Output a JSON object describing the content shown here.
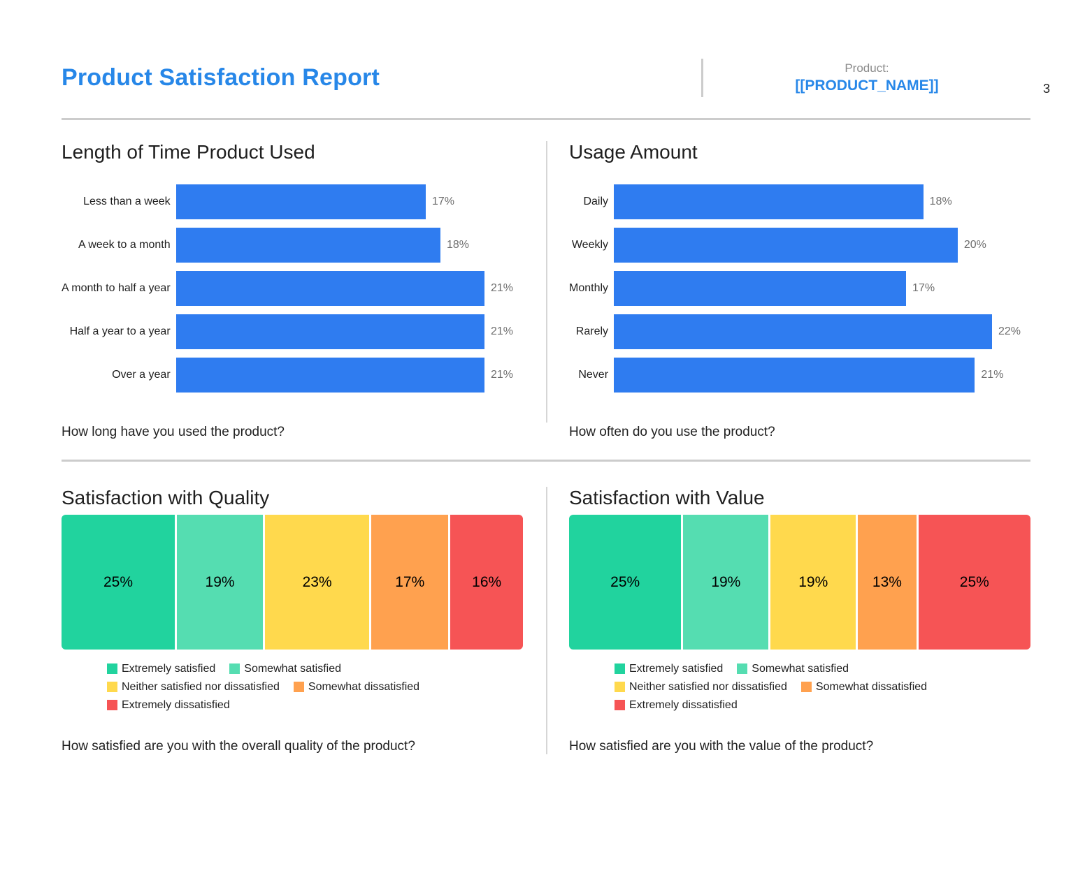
{
  "page": {
    "number": "3"
  },
  "header": {
    "title": "Product Satisfaction Report",
    "product_label": "Product:",
    "product_name": "[[PRODUCT_NAME]]"
  },
  "colors": {
    "accent_blue": "#2787e8",
    "bar_blue": "#2f7cf0",
    "divider_gray": "#cccccc"
  },
  "legend": {
    "items": [
      {
        "label": "Extremely satisfied",
        "color": "#21d39e"
      },
      {
        "label": "Somewhat satisfied",
        "color": "#55ddb1"
      },
      {
        "label": "Neither satisfied nor dissatisfied",
        "color": "#ffd94d"
      },
      {
        "label": "Somewhat dissatisfied",
        "color": "#ffa14f"
      },
      {
        "label": "Extremely dissatisfied",
        "color": "#f65455"
      }
    ],
    "rows": [
      [
        0,
        1
      ],
      [
        2,
        3
      ],
      [
        4
      ]
    ]
  },
  "chart_data": [
    {
      "type": "bar",
      "orientation": "horizontal",
      "title": "Length of Time Product Used",
      "categories": [
        "Less than a week",
        "A week to a month",
        "A month to half a year",
        "Half a year to a year",
        "Over a year"
      ],
      "values": [
        17,
        18,
        21,
        21,
        21
      ],
      "value_labels": [
        "17%",
        "18%",
        "21%",
        "21%",
        "21%"
      ],
      "bar_color": "#2f7cf0",
      "question": "How long have you used the product?",
      "xlim": [
        0,
        21
      ],
      "grid": false,
      "legend_position": "none"
    },
    {
      "type": "bar",
      "orientation": "horizontal",
      "title": "Usage Amount",
      "categories": [
        "Daily",
        "Weekly",
        "Monthly",
        "Rarely",
        "Never"
      ],
      "values": [
        18,
        20,
        17,
        22,
        21
      ],
      "value_labels": [
        "18%",
        "20%",
        "17%",
        "22%",
        "21%"
      ],
      "bar_color": "#2f7cf0",
      "question": "How often do you use the product?",
      "xlim": [
        0,
        22
      ],
      "grid": false,
      "legend_position": "none"
    },
    {
      "type": "stacked-bar",
      "orientation": "horizontal",
      "title": "Satisfaction with Quality",
      "segments": [
        {
          "name": "Extremely satisfied",
          "value": 25,
          "label": "25%",
          "color": "#21d39e"
        },
        {
          "name": "Somewhat satisfied",
          "value": 19,
          "label": "19%",
          "color": "#55ddb1"
        },
        {
          "name": "Neither satisfied nor dissatisfied",
          "value": 23,
          "label": "23%",
          "color": "#ffd94d"
        },
        {
          "name": "Somewhat dissatisfied",
          "value": 17,
          "label": "17%",
          "color": "#ffa14f"
        },
        {
          "name": "Extremely dissatisfied",
          "value": 16,
          "label": "16%",
          "color": "#f65455"
        }
      ],
      "question": "How satisfied are you with the overall quality of the product?",
      "legend_position": "bottom"
    },
    {
      "type": "stacked-bar",
      "orientation": "horizontal",
      "title": "Satisfaction with Value",
      "segments": [
        {
          "name": "Extremely satisfied",
          "value": 25,
          "label": "25%",
          "color": "#21d39e"
        },
        {
          "name": "Somewhat satisfied",
          "value": 19,
          "label": "19%",
          "color": "#55ddb1"
        },
        {
          "name": "Neither satisfied nor dissatisfied",
          "value": 19,
          "label": "19%",
          "color": "#ffd94d"
        },
        {
          "name": "Somewhat dissatisfied",
          "value": 13,
          "label": "13%",
          "color": "#ffa14f"
        },
        {
          "name": "Extremely dissatisfied",
          "value": 25,
          "label": "25%",
          "color": "#f65455"
        }
      ],
      "question": "How satisfied are you with the value of the product?",
      "legend_position": "bottom"
    }
  ]
}
